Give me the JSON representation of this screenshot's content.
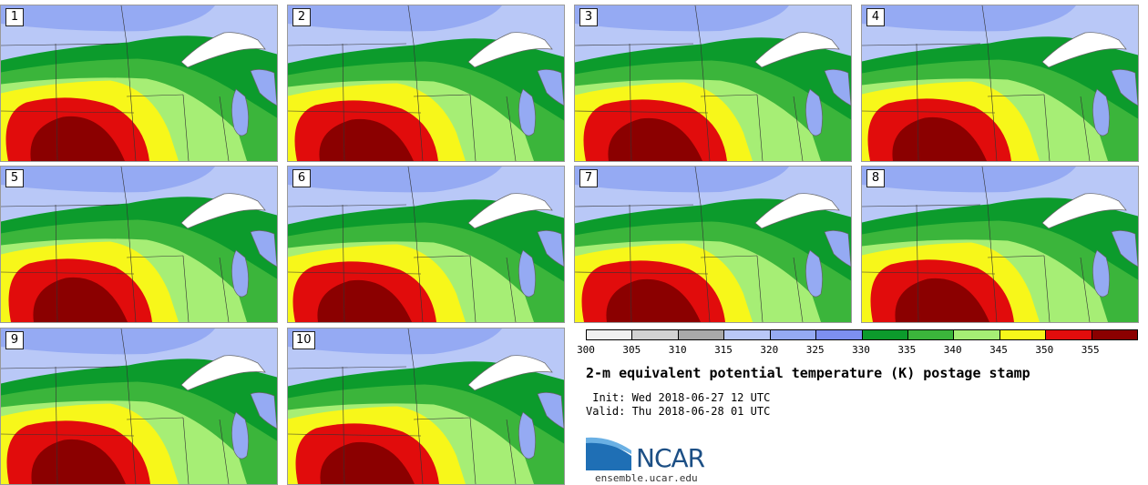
{
  "panels": [
    {
      "label": "1"
    },
    {
      "label": "2"
    },
    {
      "label": "3"
    },
    {
      "label": "4"
    },
    {
      "label": "5"
    },
    {
      "label": "6"
    },
    {
      "label": "7"
    },
    {
      "label": "8"
    },
    {
      "label": "9"
    },
    {
      "label": "10"
    }
  ],
  "colorbar": {
    "colors": [
      "#f0f0f0",
      "#d2d2d2",
      "#a9a9a9",
      "#b9c8f7",
      "#95aaf3",
      "#7d8ff0",
      "#0c9b2c",
      "#3bb53b",
      "#a6ee75",
      "#f7f71a",
      "#e10c0c",
      "#8b0000"
    ],
    "ticks": [
      "300",
      "305",
      "310",
      "315",
      "320",
      "325",
      "330",
      "335",
      "340",
      "345",
      "350",
      "355"
    ]
  },
  "title": "2-m equivalent potential temperature (K) postage stamp",
  "init_line": " Init: Wed 2018-06-27 12 UTC",
  "valid_line": "Valid: Thu 2018-06-28 01 UTC",
  "logo_text": "NCAR",
  "site": "ensemble.ucar.edu"
}
